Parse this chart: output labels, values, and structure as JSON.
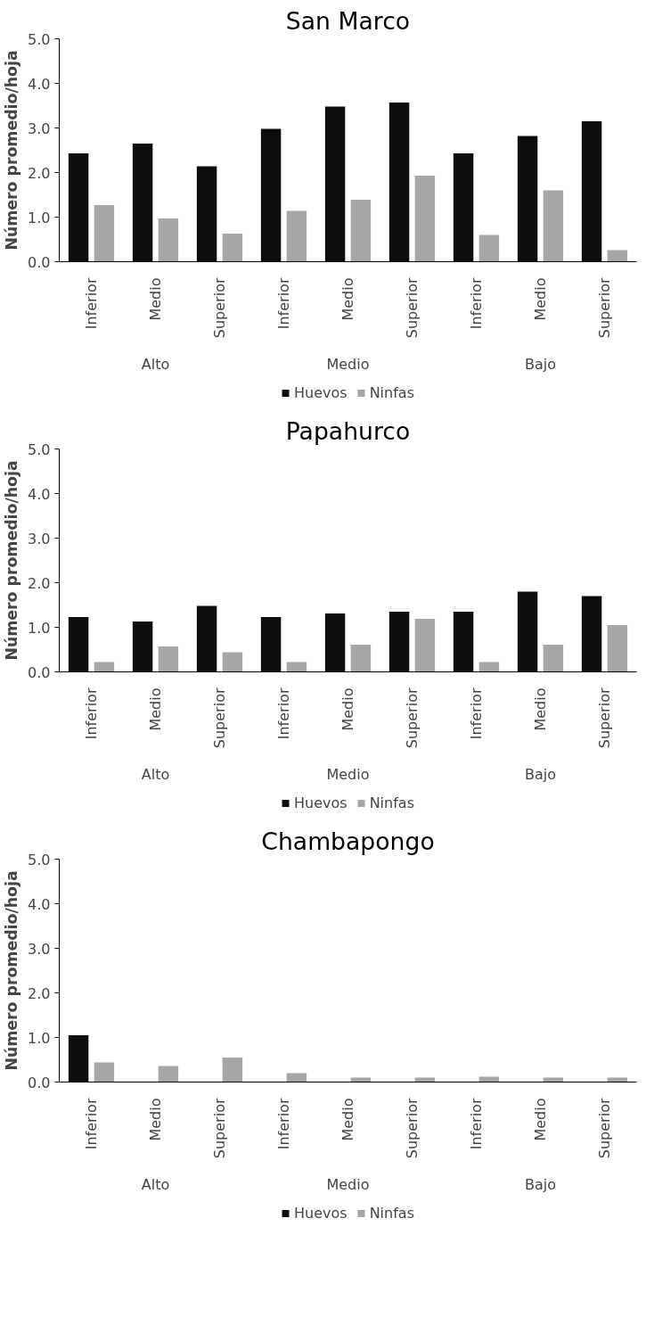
{
  "chart_data": [
    {
      "type": "bar",
      "title": "San Marco",
      "ylabel": "Número promedio/hoja",
      "categories": [
        "Inferior",
        "Medio",
        "Superior",
        "Inferior",
        "Medio",
        "Superior",
        "Inferior",
        "Medio",
        "Superior"
      ],
      "annotations": [
        "Alto",
        "Medio",
        "Bajo"
      ],
      "ylim": [
        0,
        5
      ],
      "yticks": [
        {
          "value": 0,
          "label": "0.0"
        },
        {
          "value": 1,
          "label": "1.0"
        },
        {
          "value": 2,
          "label": "2.0"
        },
        {
          "value": 3,
          "label": "3.0"
        },
        {
          "value": 4,
          "label": "4.0"
        },
        {
          "value": 5,
          "label": "5.0"
        }
      ],
      "grid": false,
      "legend": "bottom",
      "series": [
        {
          "name": "Huevos",
          "color": "#0d0d0d",
          "values": [
            2.43,
            2.65,
            2.14,
            2.98,
            3.48,
            3.57,
            2.43,
            2.82,
            3.15
          ]
        },
        {
          "name": "Ninfas",
          "color": "#a6a6a6",
          "values": [
            1.27,
            0.97,
            0.63,
            1.14,
            1.39,
            1.93,
            0.6,
            1.6,
            0.26
          ]
        }
      ]
    },
    {
      "type": "bar",
      "title": "Papahurco",
      "ylabel": "Número promedio/hoja",
      "categories": [
        "Inferior",
        "Medio",
        "Superior",
        "Inferior",
        "Medio",
        "Superior",
        "Inferior",
        "Medio",
        "Superior"
      ],
      "annotations": [
        "Alto",
        "Medio",
        "Bajo"
      ],
      "ylim": [
        0,
        5
      ],
      "yticks": [
        {
          "value": 0,
          "label": "0.0"
        },
        {
          "value": 1,
          "label": "1.0"
        },
        {
          "value": 2,
          "label": "2.0"
        },
        {
          "value": 3,
          "label": "3.0"
        },
        {
          "value": 4,
          "label": "4.0"
        },
        {
          "value": 5,
          "label": "5.0"
        }
      ],
      "grid": false,
      "legend": "bottom",
      "series": [
        {
          "name": "Huevos",
          "color": "#0d0d0d",
          "values": [
            1.23,
            1.13,
            1.48,
            1.23,
            1.31,
            1.35,
            1.35,
            1.8,
            1.7
          ]
        },
        {
          "name": "Ninfas",
          "color": "#a6a6a6",
          "values": [
            0.22,
            0.57,
            0.44,
            0.22,
            0.61,
            1.19,
            0.22,
            0.61,
            1.05
          ]
        }
      ]
    },
    {
      "type": "bar",
      "title": "Chambapongo",
      "ylabel": "Número promedio/hoja",
      "categories": [
        "Inferior",
        "Medio",
        "Superior",
        "Inferior",
        "Medio",
        "Superior",
        "Inferior",
        "Medio",
        "Superior"
      ],
      "annotations": [
        "Alto",
        "Medio",
        "Bajo"
      ],
      "ylim": [
        0,
        5
      ],
      "yticks": [
        {
          "value": 0,
          "label": "0.0"
        },
        {
          "value": 1,
          "label": "1.0"
        },
        {
          "value": 2,
          "label": "2.0"
        },
        {
          "value": 3,
          "label": "3.0"
        },
        {
          "value": 4,
          "label": "4.0"
        },
        {
          "value": 5,
          "label": "5.0"
        }
      ],
      "grid": false,
      "legend": "bottom",
      "series": [
        {
          "name": "Huevos",
          "color": "#0d0d0d",
          "values": [
            1.05,
            0,
            0,
            0,
            0,
            0,
            0,
            0,
            0
          ]
        },
        {
          "name": "Ninfas",
          "color": "#a6a6a6",
          "values": [
            0.44,
            0.36,
            0.55,
            0.2,
            0.1,
            0.1,
            0.12,
            0.1,
            0.1
          ]
        }
      ]
    }
  ]
}
